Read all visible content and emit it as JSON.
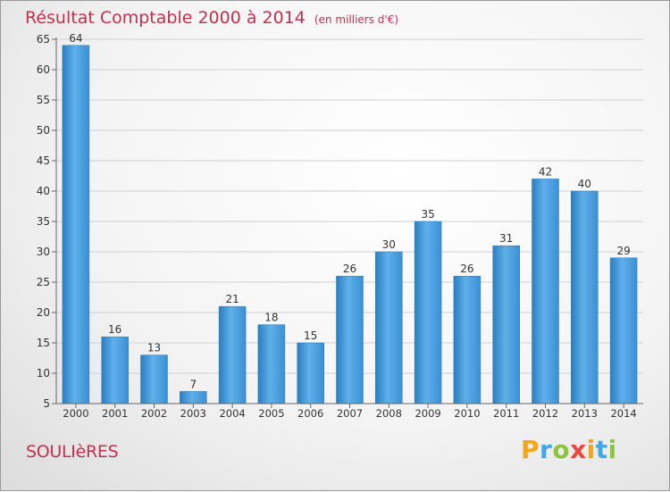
{
  "title": "Résultat Comptable 2000 à 2014",
  "title_unit": "(en milliers d'€)",
  "commune": "SOULIèRES",
  "logo": {
    "letters": [
      "P",
      "r",
      "o",
      "x",
      "i",
      "t",
      "i"
    ],
    "colors": [
      "#f2a71b",
      "#3ea9e4",
      "#8cc63f",
      "#e64b3b",
      "#f2a71b",
      "#3ea9e4",
      "#8cc63f"
    ]
  },
  "chart_data": {
    "type": "bar",
    "categories": [
      "2000",
      "2001",
      "2002",
      "2003",
      "2004",
      "2005",
      "2006",
      "2007",
      "2008",
      "2009",
      "2010",
      "2011",
      "2012",
      "2013",
      "2014"
    ],
    "values": [
      64,
      16,
      13,
      7,
      21,
      18,
      15,
      26,
      30,
      35,
      26,
      31,
      42,
      40,
      29
    ],
    "ylim": [
      5,
      65
    ],
    "yticks": [
      5,
      10,
      15,
      20,
      25,
      30,
      35,
      40,
      45,
      50,
      55,
      60,
      65
    ],
    "grid": true,
    "bar_color": "#3d92d0"
  }
}
